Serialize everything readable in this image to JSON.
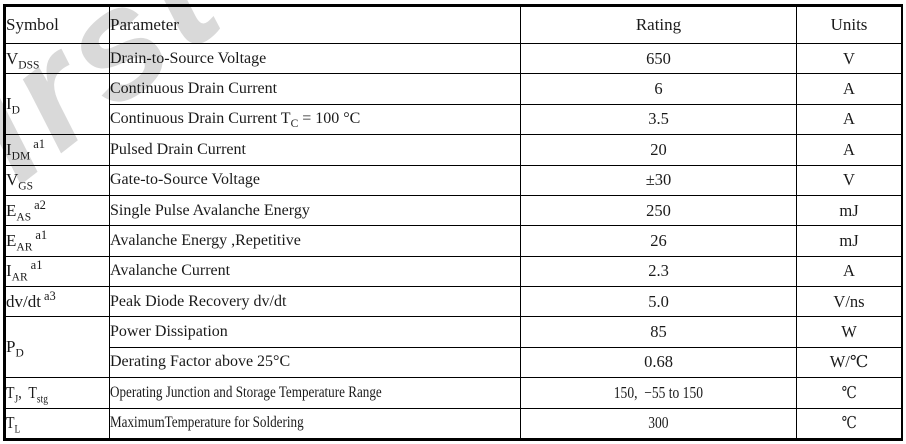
{
  "watermark": {
    "text": "First S",
    "color": "#d9d9d9"
  },
  "table": {
    "columns": [
      {
        "label": "Symbol"
      },
      {
        "label": "Parameter"
      },
      {
        "label": "Rating"
      },
      {
        "label": "Units"
      }
    ],
    "rows": [
      {
        "symbol": [
          {
            "t": "V"
          },
          {
            "sub": "DSS"
          }
        ],
        "rowspan": 1,
        "parameter": [
          {
            "t": "Drain-to-Source Voltage"
          }
        ],
        "rating": "650",
        "units": "V"
      },
      {
        "symbol": [
          {
            "t": "I"
          },
          {
            "sub": "D"
          }
        ],
        "rowspan": 2,
        "parameter": [
          {
            "t": "Continuous Drain Current"
          }
        ],
        "rating": "6",
        "units": "A"
      },
      {
        "symbol": null,
        "parameter": [
          {
            "t": "Continuous Drain Current T"
          },
          {
            "sub": "C"
          },
          {
            "t": " = 100 °C"
          }
        ],
        "rating": "3.5",
        "units": "A"
      },
      {
        "symbol": [
          {
            "t": "I"
          },
          {
            "sub": "DM"
          },
          {
            "sup": "a1"
          }
        ],
        "rowspan": 1,
        "parameter": [
          {
            "t": "Pulsed Drain Current"
          }
        ],
        "rating": "20",
        "units": "A"
      },
      {
        "symbol": [
          {
            "t": "V"
          },
          {
            "sub": "GS"
          }
        ],
        "rowspan": 1,
        "parameter": [
          {
            "t": "Gate-to-Source Voltage"
          }
        ],
        "rating": "±30",
        "units": "V"
      },
      {
        "symbol": [
          {
            "t": "E"
          },
          {
            "sub": "AS"
          },
          {
            "sup": "a2"
          }
        ],
        "rowspan": 1,
        "parameter": [
          {
            "t": "Single Pulse Avalanche Energy"
          }
        ],
        "rating": "250",
        "units": "mJ"
      },
      {
        "symbol": [
          {
            "t": "E"
          },
          {
            "sub": "AR"
          },
          {
            "sup": "a1"
          }
        ],
        "rowspan": 1,
        "parameter": [
          {
            "t": "Avalanche Energy ,Repetitive"
          }
        ],
        "rating": "26",
        "units": "mJ"
      },
      {
        "symbol": [
          {
            "t": "I"
          },
          {
            "sub": "AR"
          },
          {
            "sup": "a1"
          }
        ],
        "rowspan": 1,
        "parameter": [
          {
            "t": "Avalanche Current"
          }
        ],
        "rating": "2.3",
        "units": "A"
      },
      {
        "symbol": [
          {
            "t": "dv/dt"
          },
          {
            "sup": "a3"
          }
        ],
        "rowspan": 1,
        "parameter": [
          {
            "t": "Peak Diode Recovery dv/dt"
          }
        ],
        "rating": "5.0",
        "units": "V/ns"
      },
      {
        "symbol": [
          {
            "t": "P"
          },
          {
            "sub": "D"
          }
        ],
        "rowspan": 2,
        "parameter": [
          {
            "t": "Power Dissipation"
          }
        ],
        "rating": "85",
        "units": "W"
      },
      {
        "symbol": null,
        "parameter": [
          {
            "t": "Derating Factor above 25°C"
          }
        ],
        "rating": "0.68",
        "units": "W/℃"
      },
      {
        "symbol": [
          {
            "t": "T"
          },
          {
            "sub": "J"
          },
          {
            "t": ",  T"
          },
          {
            "sub": "stg"
          }
        ],
        "rowspan": 1,
        "parameter": [
          {
            "t": "Operating Junction and Storage Temperature Range"
          }
        ],
        "rating": "150,  −55 to 150",
        "units": "℃",
        "condensed": true
      },
      {
        "symbol": [
          {
            "t": "T"
          },
          {
            "sub": "L"
          }
        ],
        "rowspan": 1,
        "parameter": [
          {
            "t": "MaximumTemperature for Soldering"
          }
        ],
        "rating": "300",
        "units": "℃",
        "condensed": true
      }
    ]
  }
}
